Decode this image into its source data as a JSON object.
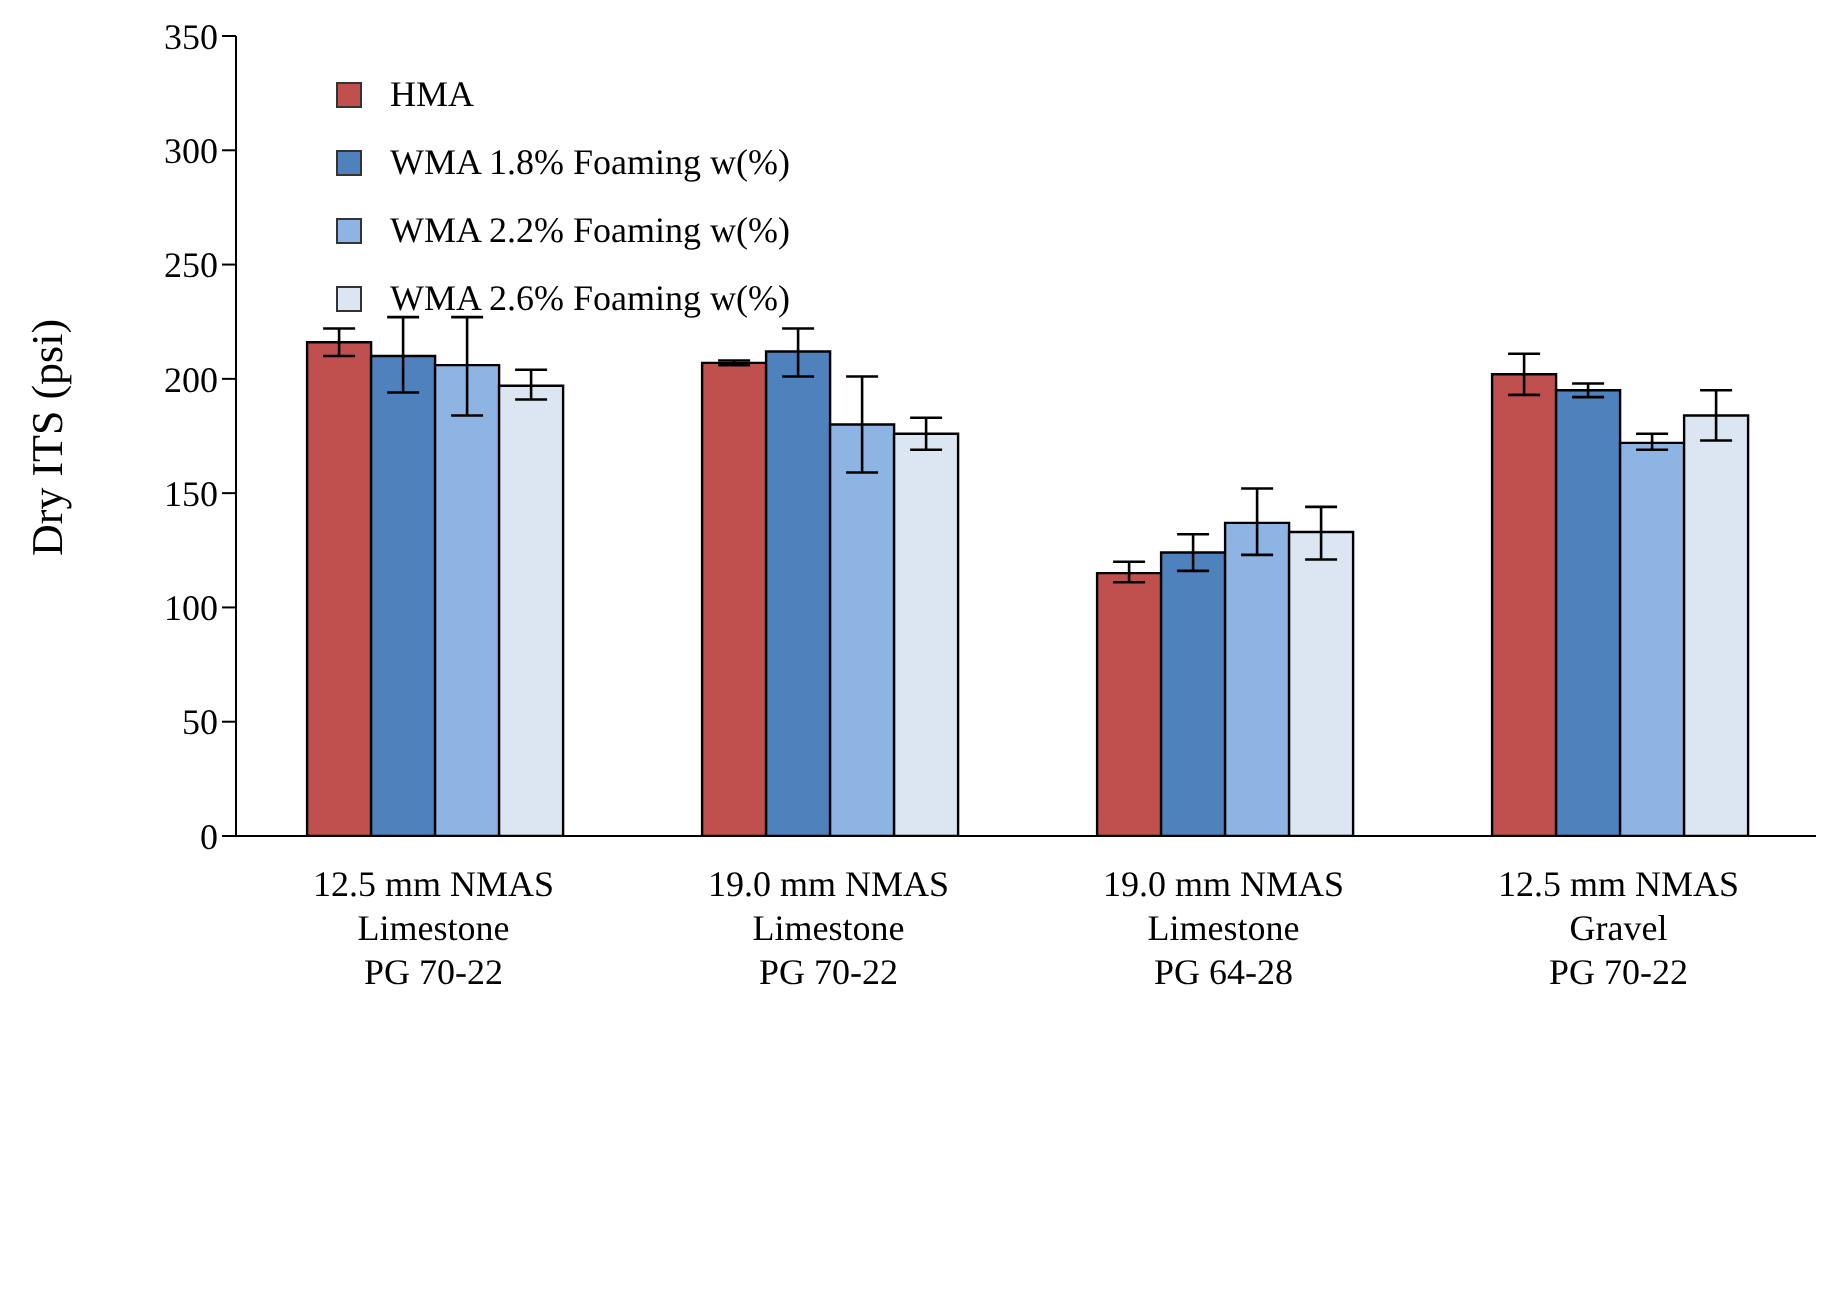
{
  "chart_data": {
    "type": "bar",
    "ylabel": "Dry ITS (psi)",
    "categories": [
      "12.5 mm NMAS\nLimestone\nPG 70-22",
      "19.0 mm NMAS\nLimestone\nPG 70-22",
      "19.0 mm NMAS\nLimestone\nPG 64-28",
      "12.5 mm NMAS\nGravel\nPG 70-22"
    ],
    "series": [
      {
        "name": "HMA",
        "color": "#c0504d",
        "values": [
          216,
          207,
          115,
          202
        ],
        "errors": [
          [
            210,
            222
          ],
          [
            206,
            208
          ],
          [
            111,
            120
          ],
          [
            193,
            211
          ]
        ]
      },
      {
        "name": "WMA 1.8% Foaming w(%)",
        "color": "#4f81bd",
        "values": [
          210,
          212,
          124,
          195
        ],
        "errors": [
          [
            194,
            227
          ],
          [
            201,
            222
          ],
          [
            116,
            132
          ],
          [
            192,
            198
          ]
        ]
      },
      {
        "name": "WMA 2.2% Foaming w(%)",
        "color": "#8eb4e3",
        "values": [
          206,
          180,
          137,
          172
        ],
        "errors": [
          [
            184,
            227
          ],
          [
            159,
            201
          ],
          [
            123,
            152
          ],
          [
            169,
            176
          ]
        ]
      },
      {
        "name": "WMA 2.6% Foaming w(%)",
        "color": "#dce6f2",
        "values": [
          197,
          176,
          133,
          184
        ],
        "errors": [
          [
            191,
            204
          ],
          [
            169,
            183
          ],
          [
            121,
            144
          ],
          [
            173,
            195
          ]
        ]
      }
    ],
    "ylim": [
      0,
      350
    ],
    "yticks": [
      0,
      50,
      100,
      150,
      200,
      250,
      300,
      350
    ],
    "grid": false,
    "legend": "top left"
  }
}
